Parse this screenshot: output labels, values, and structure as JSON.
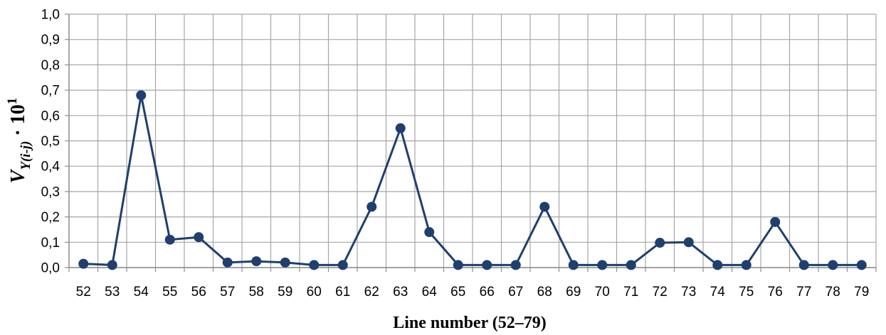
{
  "chart_data": {
    "type": "line",
    "xlabel": "Line number (52–79)",
    "ylabel": {
      "base": "V",
      "subscript": "Y(i-j)",
      "suffix": " · 10",
      "superscript": "1"
    },
    "ylim": [
      0,
      1.0
    ],
    "yticks": [
      "0,0",
      "0,1",
      "0,2",
      "0,3",
      "0,4",
      "0,5",
      "0,6",
      "0,7",
      "0,8",
      "0,9",
      "1,0"
    ],
    "categories": [
      "52",
      "53",
      "54",
      "55",
      "56",
      "57",
      "58",
      "59",
      "60",
      "61",
      "62",
      "63",
      "64",
      "65",
      "66",
      "67",
      "68",
      "69",
      "70",
      "71",
      "72",
      "73",
      "74",
      "75",
      "76",
      "77",
      "78",
      "79"
    ],
    "series": [
      {
        "color": "#1f3f6e",
        "values": [
          0.015,
          0.01,
          0.68,
          0.11,
          0.12,
          0.02,
          0.025,
          0.02,
          0.01,
          0.01,
          0.24,
          0.55,
          0.14,
          0.01,
          0.01,
          0.01,
          0.24,
          0.01,
          0.01,
          0.01,
          0.098,
          0.1,
          0.01,
          0.01,
          0.18,
          0.01,
          0.01,
          0.01
        ]
      }
    ],
    "grid": true,
    "legend": "none"
  }
}
